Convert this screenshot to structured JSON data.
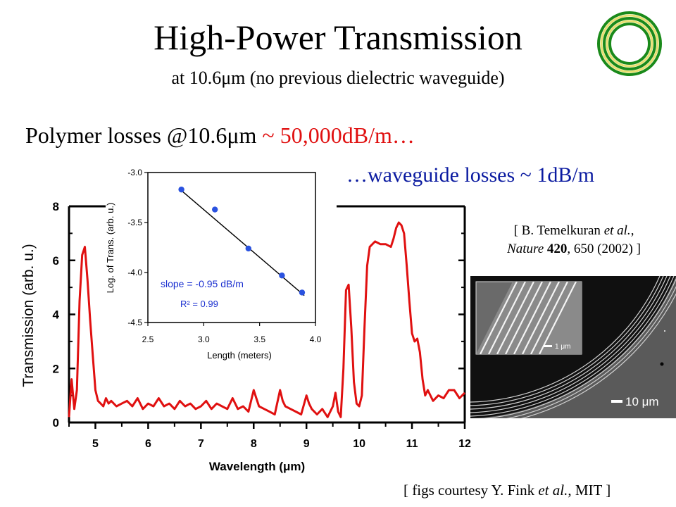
{
  "slide": {
    "title": "High-Power Transmission",
    "subtitle": "at 10.6μm (no previous dielectric waveguide)",
    "losses_prefix": "Polymer losses @10.6μm ",
    "losses_value": "~ 50,000dB/m…",
    "waveguide_losses": "…waveguide losses ~ 1dB/m",
    "reference": {
      "open": "[ B. Temelkuran ",
      "etal": "et al.",
      "comma": ",",
      "journal": "Nature",
      "volume": "420",
      "pages": ", 650 (2002) ]"
    },
    "courtesy": {
      "prefix": "[ figs courtesy Y. Fink ",
      "etal": "et al.",
      "suffix": ", MIT ]"
    },
    "sem_scale_main": "10 μm",
    "sem_scale_inset": "1 μm",
    "colors": {
      "curve": "#e01010",
      "annotation": "#1a2fd0",
      "fit_points": "#2a52e0",
      "logo": "#1a8a1a"
    },
    "icons": {
      "logo": "concentric-rings-icon"
    }
  },
  "chart_data": [
    {
      "type": "line",
      "xlabel": "Wavelength (μm)",
      "ylabel": "Transmission (arb. u.)",
      "xlim": [
        4.5,
        12.0
      ],
      "ylim": [
        0,
        8
      ],
      "xticks": [
        "5",
        "6",
        "7",
        "8",
        "9",
        "10",
        "11",
        "12"
      ],
      "yticks": [
        "0",
        "2",
        "4",
        "6",
        "8"
      ],
      "series": [
        {
          "x": [
            4.5,
            4.55,
            4.6,
            4.65,
            4.7,
            4.75,
            4.8,
            4.85,
            4.9,
            4.95,
            5.0,
            5.05,
            5.1,
            5.15,
            5.2,
            5.25,
            5.3,
            5.4,
            5.5,
            5.6,
            5.7,
            5.8,
            5.9,
            6.0,
            6.1,
            6.2,
            6.3,
            6.4,
            6.5,
            6.6,
            6.7,
            6.8,
            6.9,
            7.0,
            7.1,
            7.2,
            7.3,
            7.4,
            7.5,
            7.6,
            7.7,
            7.8,
            7.9,
            8.0,
            8.05,
            8.1,
            8.2,
            8.3,
            8.4,
            8.5,
            8.55,
            8.6,
            8.7,
            8.8,
            8.9,
            9.0,
            9.05,
            9.1,
            9.2,
            9.3,
            9.4,
            9.5,
            9.55,
            9.6,
            9.65,
            9.7,
            9.75,
            9.8,
            9.85,
            9.9,
            9.95,
            10.0,
            10.05,
            10.1,
            10.15,
            10.2,
            10.3,
            10.4,
            10.5,
            10.6,
            10.65,
            10.7,
            10.75,
            10.8,
            10.85,
            10.9,
            10.95,
            11.0,
            11.05,
            11.1,
            11.15,
            11.2,
            11.25,
            11.3,
            11.4,
            11.5,
            11.6,
            11.7,
            11.8,
            11.9,
            12.0
          ],
          "y": [
            0.2,
            1.6,
            0.5,
            1.2,
            4.5,
            6.2,
            6.5,
            5.3,
            3.8,
            2.5,
            1.2,
            0.8,
            0.7,
            0.6,
            0.9,
            0.7,
            0.8,
            0.6,
            0.7,
            0.8,
            0.6,
            0.9,
            0.5,
            0.7,
            0.6,
            0.9,
            0.6,
            0.7,
            0.5,
            0.8,
            0.6,
            0.7,
            0.5,
            0.6,
            0.8,
            0.5,
            0.7,
            0.6,
            0.5,
            0.9,
            0.5,
            0.6,
            0.4,
            1.2,
            0.9,
            0.6,
            0.5,
            0.4,
            0.3,
            1.2,
            0.8,
            0.6,
            0.5,
            0.4,
            0.3,
            1.0,
            0.7,
            0.5,
            0.3,
            0.5,
            0.2,
            0.6,
            1.1,
            0.4,
            0.2,
            2.0,
            4.9,
            5.1,
            3.5,
            1.5,
            0.7,
            0.6,
            1.0,
            3.5,
            5.8,
            6.5,
            6.7,
            6.6,
            6.6,
            6.5,
            6.8,
            7.2,
            7.4,
            7.3,
            7.0,
            5.8,
            4.5,
            3.3,
            3.0,
            3.1,
            2.6,
            1.6,
            1.0,
            1.2,
            0.8,
            1.0,
            0.9,
            1.2,
            1.2,
            0.9,
            1.1
          ]
        }
      ]
    },
    {
      "type": "scatter",
      "xlabel": "Length (meters)",
      "ylabel": "Log. of Trans. (arb. u.)",
      "xlim": [
        2.5,
        4.0
      ],
      "ylim": [
        -4.5,
        -3.0
      ],
      "xticks": [
        "2.5",
        "3.0",
        "3.5",
        "4.0"
      ],
      "yticks": [
        "-3.0",
        "-3.5",
        "-4.0",
        "-4.5"
      ],
      "annotations": {
        "slope": "slope = -0.95 dB/m",
        "r2": "R² = 0.99"
      },
      "series": [
        {
          "x": [
            2.8,
            3.1,
            3.4,
            3.7,
            3.88
          ],
          "y": [
            -3.17,
            -3.37,
            -3.76,
            -4.03,
            -4.2
          ]
        }
      ],
      "fit_line": {
        "x": [
          2.8,
          3.9
        ],
        "y": [
          -3.18,
          -4.23
        ]
      }
    }
  ]
}
